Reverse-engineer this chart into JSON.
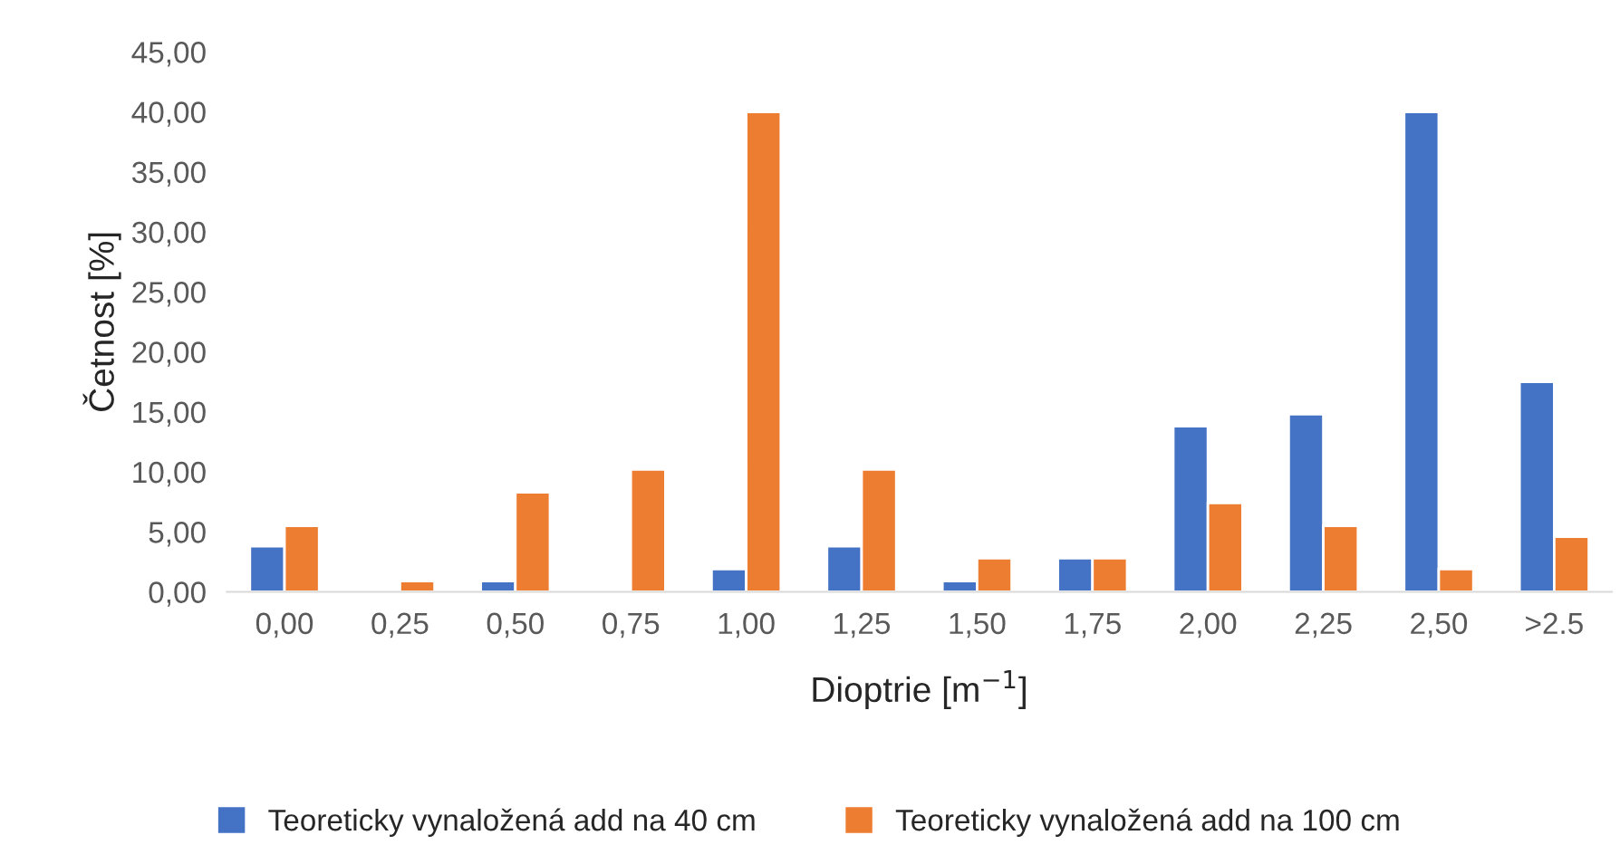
{
  "chart_data": {
    "type": "bar",
    "xlabel": "Dioptrie [m$^{−1}$]",
    "ylabel": "Četnost [%]",
    "categories": [
      "0,00",
      "0,25",
      "0,50",
      "0,75",
      "1,00",
      "1,25",
      "1,50",
      "1,75",
      "2,00",
      "2,25",
      "2,50",
      ">2.5"
    ],
    "series": [
      {
        "name": "Teoreticky vynaložená add na 40 cm",
        "color": "#4472c4",
        "values": [
          3.8,
          null,
          0.9,
          null,
          1.9,
          3.8,
          0.9,
          2.8,
          13.8,
          14.8,
          40,
          17.5
        ]
      },
      {
        "name": "Teoreticky vynaložená add na 100 cm",
        "color": "#ed7d31",
        "values": [
          5.5,
          0.9,
          8.3,
          10.2,
          40,
          10.2,
          2.8,
          2.8,
          7.4,
          5.5,
          1.9,
          4.6
        ]
      }
    ],
    "ylim": [
      0,
      45
    ],
    "yticks": [
      {
        "value": 0,
        "label": "0,00"
      },
      {
        "value": 5,
        "label": "5,00"
      },
      {
        "value": 10,
        "label": "10,00"
      },
      {
        "value": 15,
        "label": "15,00"
      },
      {
        "value": 20,
        "label": "20,00"
      },
      {
        "value": 25,
        "label": "25,00"
      },
      {
        "value": 30,
        "label": "30,00"
      },
      {
        "value": 35,
        "label": "35,00"
      },
      {
        "value": 40,
        "label": "40,00"
      },
      {
        "value": 45,
        "label": "45,00"
      }
    ],
    "grid": false,
    "legend": "bottom"
  }
}
